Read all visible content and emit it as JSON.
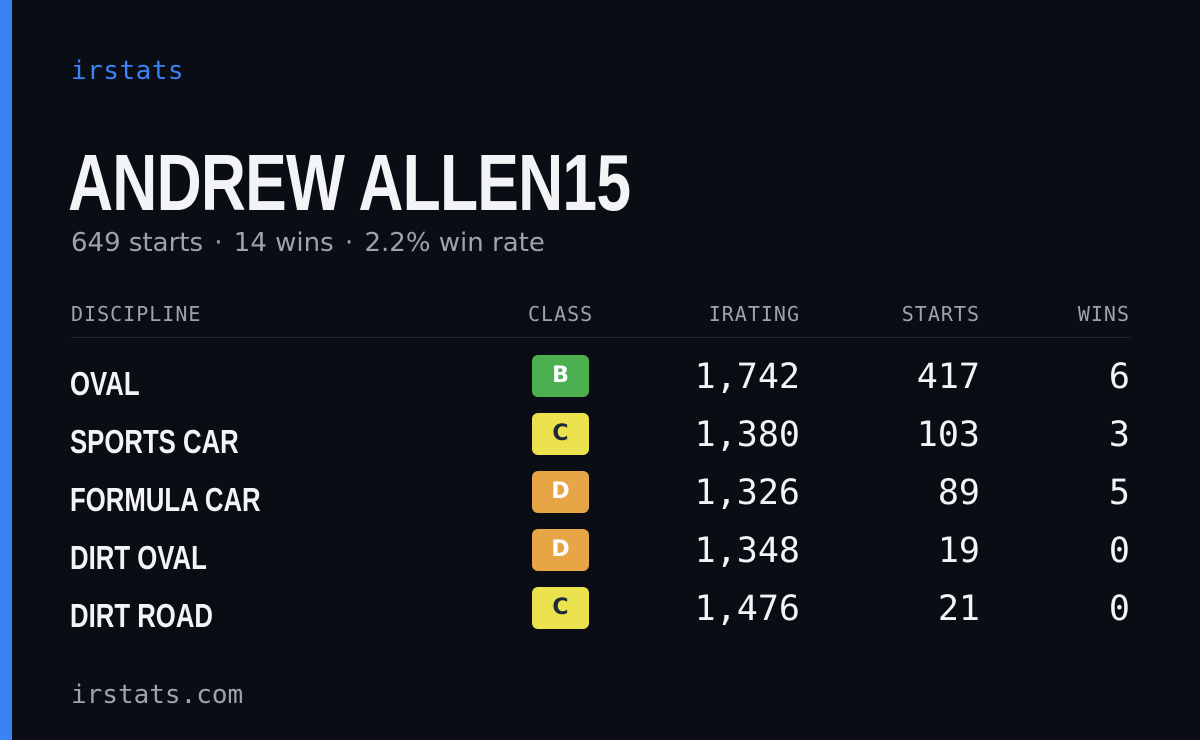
{
  "brand": "irstats",
  "player": {
    "name": "ANDREW ALLEN15",
    "starts_text": "649 starts",
    "wins_text": "14 wins",
    "winrate_text": "2.2% win rate",
    "separator": "·"
  },
  "table": {
    "headers": {
      "discipline": "DISCIPLINE",
      "class": "CLASS",
      "irating": "IRATING",
      "starts": "STARTS",
      "wins": "WINS"
    },
    "rows": [
      {
        "discipline": "OVAL",
        "class": "B",
        "class_bg": "#4caf50",
        "class_fg": "#ffffff",
        "irating": "1,742",
        "starts": "417",
        "wins": "6"
      },
      {
        "discipline": "SPORTS CAR",
        "class": "C",
        "class_bg": "#ebe24d",
        "class_fg": "#1f2937",
        "irating": "1,380",
        "starts": "103",
        "wins": "3"
      },
      {
        "discipline": "FORMULA CAR",
        "class": "D",
        "class_bg": "#e8a546",
        "class_fg": "#ffffff",
        "irating": "1,326",
        "starts": "89",
        "wins": "5"
      },
      {
        "discipline": "DIRT OVAL",
        "class": "D",
        "class_bg": "#e8a546",
        "class_fg": "#ffffff",
        "irating": "1,348",
        "starts": "19",
        "wins": "0"
      },
      {
        "discipline": "DIRT ROAD",
        "class": "C",
        "class_bg": "#ebe24d",
        "class_fg": "#1f2937",
        "irating": "1,476",
        "starts": "21",
        "wins": "0"
      }
    ]
  },
  "footer": {
    "url": "irstats.com"
  },
  "colors": {
    "background": "#0a0d14",
    "accent": "#3b82f6",
    "text_primary": "#f3f4f6",
    "text_muted": "#9ca3af"
  }
}
